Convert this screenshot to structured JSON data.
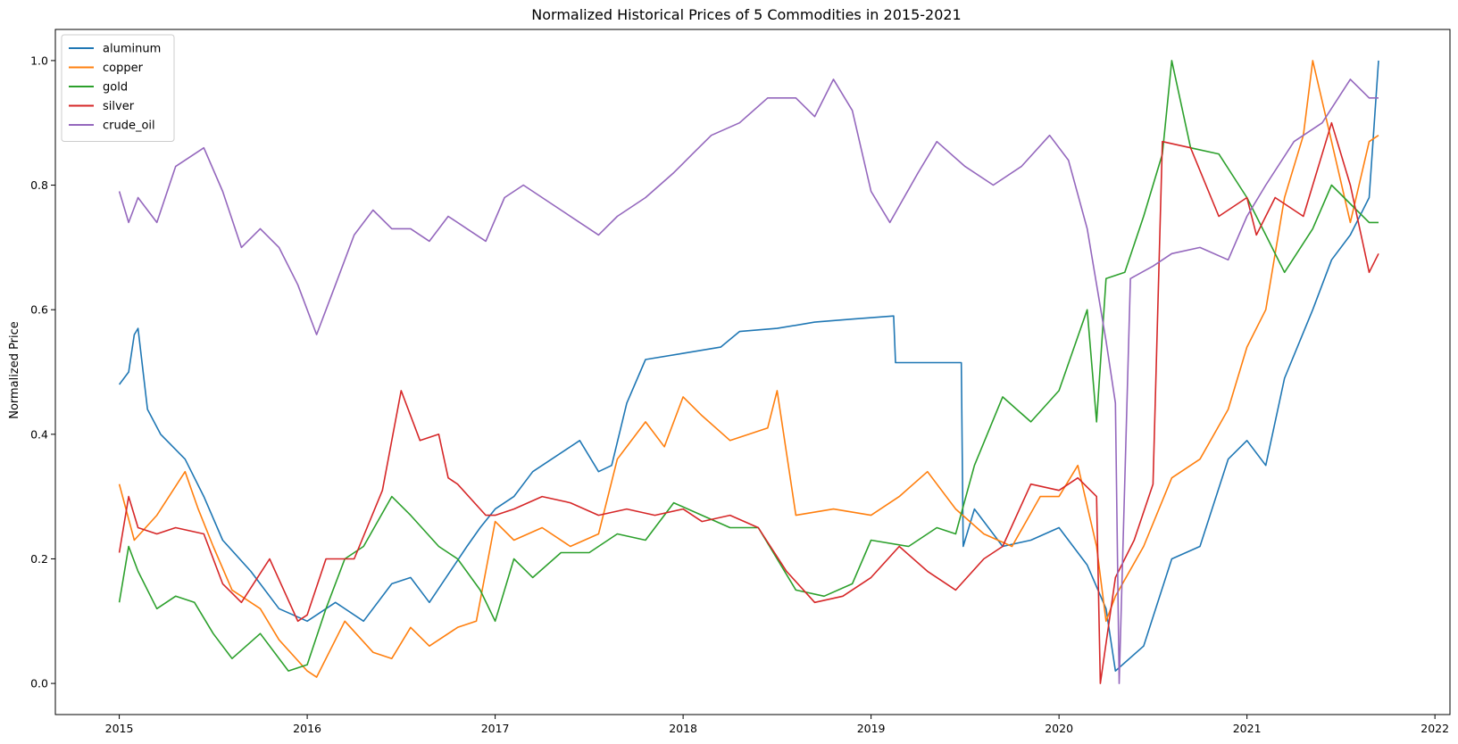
{
  "chart_data": {
    "type": "line",
    "title": "Normalized Historical Prices of 5 Commodities in 2015-2021",
    "xlabel": "",
    "ylabel": "Normalized Price",
    "xlim": [
      2014.66,
      2022.08
    ],
    "ylim": [
      -0.05,
      1.05
    ],
    "x_ticks": [
      2015,
      2016,
      2017,
      2018,
      2019,
      2020,
      2021,
      2022
    ],
    "x_tick_labels": [
      "2015",
      "2016",
      "2017",
      "2018",
      "2019",
      "2020",
      "2021",
      "2022"
    ],
    "y_ticks": [
      0.0,
      0.2,
      0.4,
      0.6,
      0.8,
      1.0
    ],
    "y_tick_labels": [
      "0.0",
      "0.2",
      "0.4",
      "0.6",
      "0.8",
      "1.0"
    ],
    "grid": false,
    "legend": "top-left",
    "series": [
      {
        "name": "aluminum",
        "color": "#1f77b4",
        "x": [
          2015.0,
          2015.05,
          2015.08,
          2015.1,
          2015.15,
          2015.22,
          2015.35,
          2015.45,
          2015.55,
          2015.7,
          2015.85,
          2016.0,
          2016.15,
          2016.3,
          2016.45,
          2016.55,
          2016.65,
          2016.85,
          2016.92,
          2017.0,
          2017.1,
          2017.2,
          2017.3,
          2017.45,
          2017.55,
          2017.62,
          2017.7,
          2017.8,
          2018.0,
          2018.1,
          2018.2,
          2018.3,
          2018.5,
          2018.7,
          2018.9,
          2019.12,
          2019.13,
          2019.3,
          2019.48,
          2019.49,
          2019.55,
          2019.7,
          2019.85,
          2020.0,
          2020.15,
          2020.25,
          2020.3,
          2020.45,
          2020.6,
          2020.75,
          2020.9,
          2021.0,
          2021.1,
          2021.2,
          2021.35,
          2021.45,
          2021.55,
          2021.65,
          2021.7
        ],
        "y": [
          0.48,
          0.5,
          0.56,
          0.57,
          0.44,
          0.4,
          0.36,
          0.3,
          0.23,
          0.18,
          0.12,
          0.1,
          0.13,
          0.1,
          0.16,
          0.17,
          0.13,
          0.22,
          0.25,
          0.28,
          0.3,
          0.34,
          0.36,
          0.39,
          0.34,
          0.35,
          0.45,
          0.52,
          0.53,
          0.535,
          0.54,
          0.565,
          0.57,
          0.58,
          0.585,
          0.59,
          0.515,
          0.515,
          0.515,
          0.22,
          0.28,
          0.22,
          0.23,
          0.25,
          0.19,
          0.12,
          0.02,
          0.06,
          0.2,
          0.22,
          0.36,
          0.39,
          0.35,
          0.49,
          0.6,
          0.68,
          0.72,
          0.78,
          1.0
        ]
      },
      {
        "name": "copper",
        "color": "#ff7f0e",
        "x": [
          2015.0,
          2015.08,
          2015.2,
          2015.35,
          2015.42,
          2015.5,
          2015.6,
          2015.75,
          2015.85,
          2016.0,
          2016.05,
          2016.2,
          2016.35,
          2016.45,
          2016.55,
          2016.65,
          2016.8,
          2016.9,
          2017.0,
          2017.1,
          2017.25,
          2017.4,
          2017.55,
          2017.65,
          2017.8,
          2017.9,
          2018.0,
          2018.1,
          2018.25,
          2018.35,
          2018.45,
          2018.5,
          2018.6,
          2018.8,
          2019.0,
          2019.15,
          2019.3,
          2019.45,
          2019.6,
          2019.75,
          2019.9,
          2020.0,
          2020.1,
          2020.2,
          2020.25,
          2020.3,
          2020.45,
          2020.6,
          2020.75,
          2020.9,
          2021.0,
          2021.1,
          2021.2,
          2021.3,
          2021.35,
          2021.45,
          2021.55,
          2021.65,
          2021.7
        ],
        "y": [
          0.32,
          0.23,
          0.27,
          0.34,
          0.28,
          0.22,
          0.15,
          0.12,
          0.07,
          0.02,
          0.01,
          0.1,
          0.05,
          0.04,
          0.09,
          0.06,
          0.09,
          0.1,
          0.26,
          0.23,
          0.25,
          0.22,
          0.24,
          0.36,
          0.42,
          0.38,
          0.46,
          0.43,
          0.39,
          0.4,
          0.41,
          0.47,
          0.27,
          0.28,
          0.27,
          0.3,
          0.34,
          0.28,
          0.24,
          0.22,
          0.3,
          0.3,
          0.35,
          0.22,
          0.1,
          0.14,
          0.22,
          0.33,
          0.36,
          0.44,
          0.54,
          0.6,
          0.78,
          0.88,
          1.0,
          0.87,
          0.74,
          0.87,
          0.88
        ]
      },
      {
        "name": "gold",
        "color": "#2ca02c",
        "x": [
          2015.0,
          2015.05,
          2015.1,
          2015.2,
          2015.3,
          2015.4,
          2015.5,
          2015.6,
          2015.75,
          2015.9,
          2016.0,
          2016.1,
          2016.2,
          2016.3,
          2016.45,
          2016.55,
          2016.7,
          2016.8,
          2016.92,
          2017.0,
          2017.1,
          2017.2,
          2017.35,
          2017.5,
          2017.65,
          2017.8,
          2017.95,
          2018.1,
          2018.25,
          2018.4,
          2018.5,
          2018.6,
          2018.75,
          2018.9,
          2019.0,
          2019.2,
          2019.35,
          2019.45,
          2019.55,
          2019.7,
          2019.85,
          2020.0,
          2020.15,
          2020.2,
          2020.25,
          2020.35,
          2020.45,
          2020.55,
          2020.6,
          2020.7,
          2020.85,
          2021.0,
          2021.1,
          2021.2,
          2021.35,
          2021.45,
          2021.55,
          2021.65,
          2021.7
        ],
        "y": [
          0.13,
          0.22,
          0.18,
          0.12,
          0.14,
          0.13,
          0.08,
          0.04,
          0.08,
          0.02,
          0.03,
          0.12,
          0.2,
          0.22,
          0.3,
          0.27,
          0.22,
          0.2,
          0.15,
          0.1,
          0.2,
          0.17,
          0.21,
          0.21,
          0.24,
          0.23,
          0.29,
          0.27,
          0.25,
          0.25,
          0.2,
          0.15,
          0.14,
          0.16,
          0.23,
          0.22,
          0.25,
          0.24,
          0.35,
          0.46,
          0.42,
          0.47,
          0.6,
          0.42,
          0.65,
          0.66,
          0.75,
          0.85,
          1.0,
          0.86,
          0.85,
          0.78,
          0.72,
          0.66,
          0.73,
          0.8,
          0.77,
          0.74,
          0.74
        ]
      },
      {
        "name": "silver",
        "color": "#d62728",
        "x": [
          2015.0,
          2015.05,
          2015.1,
          2015.2,
          2015.3,
          2015.45,
          2015.55,
          2015.65,
          2015.8,
          2015.95,
          2016.0,
          2016.1,
          2016.25,
          2016.4,
          2016.5,
          2016.6,
          2016.7,
          2016.75,
          2016.8,
          2016.95,
          2017.0,
          2017.1,
          2017.25,
          2017.4,
          2017.55,
          2017.7,
          2017.85,
          2018.0,
          2018.1,
          2018.25,
          2018.4,
          2018.55,
          2018.7,
          2018.85,
          2019.0,
          2019.15,
          2019.3,
          2019.45,
          2019.6,
          2019.7,
          2019.85,
          2020.0,
          2020.1,
          2020.2,
          2020.22,
          2020.3,
          2020.4,
          2020.5,
          2020.55,
          2020.7,
          2020.85,
          2021.0,
          2021.05,
          2021.15,
          2021.3,
          2021.45,
          2021.55,
          2021.65,
          2021.7
        ],
        "y": [
          0.21,
          0.3,
          0.25,
          0.24,
          0.25,
          0.24,
          0.16,
          0.13,
          0.2,
          0.1,
          0.11,
          0.2,
          0.2,
          0.31,
          0.47,
          0.39,
          0.4,
          0.33,
          0.32,
          0.27,
          0.27,
          0.28,
          0.3,
          0.29,
          0.27,
          0.28,
          0.27,
          0.28,
          0.26,
          0.27,
          0.25,
          0.18,
          0.13,
          0.14,
          0.17,
          0.22,
          0.18,
          0.15,
          0.2,
          0.22,
          0.32,
          0.31,
          0.33,
          0.3,
          0.0,
          0.17,
          0.23,
          0.32,
          0.87,
          0.86,
          0.75,
          0.78,
          0.72,
          0.78,
          0.75,
          0.9,
          0.8,
          0.66,
          0.69
        ]
      },
      {
        "name": "crude_oil",
        "color": "#9467bd",
        "x": [
          2015.0,
          2015.05,
          2015.1,
          2015.2,
          2015.3,
          2015.45,
          2015.55,
          2015.65,
          2015.75,
          2015.85,
          2015.95,
          2016.05,
          2016.15,
          2016.25,
          2016.35,
          2016.45,
          2016.55,
          2016.65,
          2016.75,
          2016.85,
          2016.95,
          2017.05,
          2017.15,
          2017.3,
          2017.45,
          2017.55,
          2017.65,
          2017.8,
          2017.95,
          2018.05,
          2018.15,
          2018.3,
          2018.45,
          2018.6,
          2018.7,
          2018.8,
          2018.9,
          2019.0,
          2019.1,
          2019.25,
          2019.35,
          2019.5,
          2019.65,
          2019.8,
          2019.95,
          2020.05,
          2020.15,
          2020.25,
          2020.3,
          2020.32,
          2020.38,
          2020.5,
          2020.6,
          2020.75,
          2020.9,
          2021.0,
          2021.1,
          2021.25,
          2021.4,
          2021.55,
          2021.65,
          2021.7
        ],
        "y": [
          0.79,
          0.74,
          0.78,
          0.74,
          0.83,
          0.86,
          0.79,
          0.7,
          0.73,
          0.7,
          0.64,
          0.56,
          0.64,
          0.72,
          0.76,
          0.73,
          0.73,
          0.71,
          0.75,
          0.73,
          0.71,
          0.78,
          0.8,
          0.77,
          0.74,
          0.72,
          0.75,
          0.78,
          0.82,
          0.85,
          0.88,
          0.9,
          0.94,
          0.94,
          0.91,
          0.97,
          0.92,
          0.79,
          0.74,
          0.82,
          0.87,
          0.83,
          0.8,
          0.83,
          0.88,
          0.84,
          0.73,
          0.55,
          0.45,
          0.0,
          0.65,
          0.67,
          0.69,
          0.7,
          0.68,
          0.75,
          0.8,
          0.87,
          0.9,
          0.97,
          0.94,
          0.94
        ]
      }
    ]
  }
}
